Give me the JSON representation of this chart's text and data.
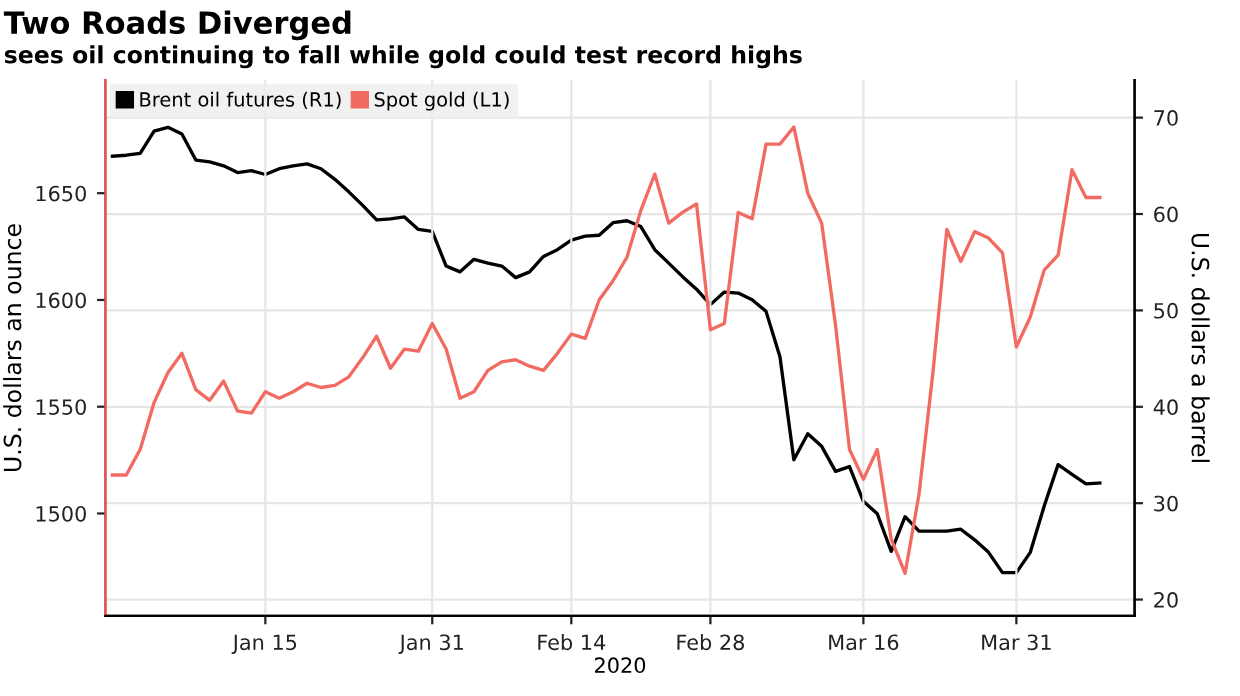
{
  "chart_data": {
    "type": "line",
    "title": "Two Roads Diverged",
    "subtitle": "sees oil continuing to fall while gold could test record highs",
    "xlabel": "2020",
    "ylabel": "U.S. dollars an ounce",
    "y2label": "U.S. dollars a barrel",
    "categories": [
      null,
      null,
      null,
      null,
      null,
      null,
      null,
      null,
      null,
      null,
      null,
      "Jan 15",
      null,
      null,
      null,
      null,
      null,
      null,
      null,
      null,
      null,
      null,
      null,
      "Jan 31",
      null,
      null,
      null,
      null,
      null,
      null,
      null,
      null,
      null,
      "Feb 14",
      null,
      null,
      null,
      null,
      null,
      null,
      null,
      null,
      null,
      "Feb 28",
      null,
      null,
      null,
      null,
      null,
      null,
      null,
      null,
      null,
      null,
      "Mar 16",
      null,
      null,
      null,
      null,
      null,
      null,
      null,
      null,
      null,
      null,
      "Mar 31",
      null,
      null,
      null,
      null,
      null,
      null
    ],
    "series": [
      {
        "name": "Brent oil futures (R1)",
        "color": "#000000",
        "axis": "y2",
        "values": [
          66.0,
          66.1,
          66.3,
          68.6,
          69.0,
          68.3,
          65.6,
          65.4,
          65.0,
          64.3,
          64.5,
          64.1,
          64.7,
          65.0,
          65.2,
          64.7,
          63.6,
          62.3,
          60.9,
          59.4,
          59.5,
          59.7,
          58.4,
          58.2,
          54.6,
          54.0,
          55.3,
          54.9,
          54.6,
          53.4,
          54.0,
          55.6,
          56.3,
          57.3,
          57.7,
          57.8,
          59.1,
          59.3,
          58.7,
          56.3,
          54.9,
          53.5,
          52.2,
          50.6,
          51.9,
          51.8,
          51.1,
          49.9,
          45.2,
          34.5,
          37.2,
          35.9,
          33.3,
          33.8,
          30.2,
          28.9,
          25.0,
          28.6,
          27.1,
          27.1,
          27.1,
          27.3,
          26.2,
          24.9,
          22.8,
          22.8,
          24.9,
          29.7,
          34.0,
          33.0,
          32.0,
          32.1
        ]
      },
      {
        "name": "Spot gold (L1)",
        "color": "#f26b63",
        "axis": "y",
        "values": [
          1518,
          1518,
          1530,
          1552,
          1566,
          1575,
          1558,
          1553,
          1562,
          1548,
          1547,
          1557,
          1554,
          1557,
          1561,
          1559,
          1560,
          1564,
          1573,
          1583,
          1568,
          1577,
          1576,
          1589,
          1577,
          1554,
          1557,
          1567,
          1571,
          1572,
          1569,
          1567,
          1575,
          1584,
          1582,
          1600,
          1609,
          1620,
          1642,
          1659,
          1636,
          1641,
          1645,
          1586,
          1589,
          1641,
          1638,
          1673,
          1673,
          1681,
          1650,
          1636,
          1588,
          1530,
          1516,
          1530,
          1488,
          1472,
          1509,
          1566,
          1633,
          1618,
          1632,
          1629,
          1622,
          1578,
          1592,
          1614,
          1621,
          1661,
          1648,
          1648
        ]
      }
    ],
    "ylim": [
      1452,
      1703
    ],
    "yticks": [
      1500,
      1550,
      1600,
      1650
    ],
    "y2lim": [
      18.3,
      73.9
    ],
    "y2ticks": [
      20,
      30,
      40,
      50,
      60,
      70
    ],
    "grid": true,
    "legend": "top left",
    "marker": "none",
    "line_style": "solid"
  }
}
